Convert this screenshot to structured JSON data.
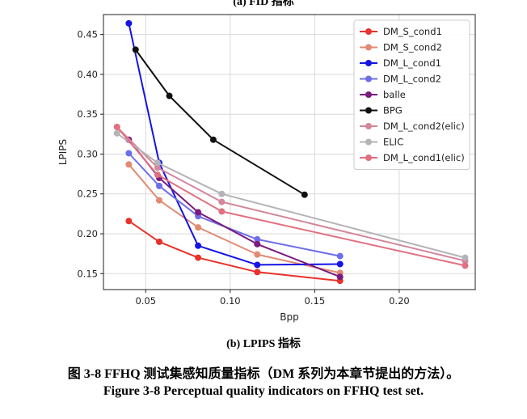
{
  "captions": {
    "top": "(a) FID 指标",
    "sub": "(b) LPIPS 指标",
    "figure_cn": "图 3-8 FFHQ 测试集感知质量指标（DM 系列为本章节提出的方法）。",
    "figure_en": "Figure 3-8 Perceptual quality indicators on FFHQ test set."
  },
  "chart_data": {
    "type": "line",
    "title": "",
    "xlabel": "Bpp",
    "ylabel": "LPIPS",
    "xlim": [
      0.025,
      0.245
    ],
    "ylim": [
      0.13,
      0.475
    ],
    "xticks": [
      0.05,
      0.1,
      0.15,
      0.2
    ],
    "xtick_labels": [
      "0.05",
      "0.10",
      "0.15",
      "0.20"
    ],
    "yticks": [
      0.15,
      0.2,
      0.25,
      0.3,
      0.35,
      0.4,
      0.45
    ],
    "ytick_labels": [
      "0.15",
      "0.20",
      "0.25",
      "0.30",
      "0.35",
      "0.40",
      "0.45"
    ],
    "grid": true,
    "legend_position": "top-right",
    "series": [
      {
        "name": "DM_S_cond1",
        "color": "#e8322a",
        "x": [
          0.04,
          0.058,
          0.081,
          0.116,
          0.165
        ],
        "y": [
          0.216,
          0.19,
          0.17,
          0.152,
          0.141
        ]
      },
      {
        "name": "DM_S_cond2",
        "color": "#e28a74",
        "x": [
          0.04,
          0.058,
          0.081,
          0.116,
          0.165
        ],
        "y": [
          0.287,
          0.242,
          0.208,
          0.174,
          0.151
        ]
      },
      {
        "name": "DM_L_cond1",
        "color": "#1414e6",
        "x": [
          0.04,
          0.058,
          0.081,
          0.116,
          0.165
        ],
        "y": [
          0.464,
          0.289,
          0.185,
          0.161,
          0.162
        ]
      },
      {
        "name": "DM_L_cond2",
        "color": "#6e6ee8",
        "x": [
          0.04,
          0.058,
          0.081,
          0.116,
          0.165
        ],
        "y": [
          0.301,
          0.26,
          0.222,
          0.193,
          0.172
        ]
      },
      {
        "name": "balle",
        "color": "#7b1a80",
        "x": [
          0.04,
          0.058,
          0.081,
          0.116,
          0.165
        ],
        "y": [
          0.318,
          0.27,
          0.227,
          0.187,
          0.146
        ]
      },
      {
        "name": "BPG",
        "color": "#111111",
        "x": [
          0.044,
          0.064,
          0.09,
          0.144
        ],
        "y": [
          0.431,
          0.373,
          0.318,
          0.249
        ]
      },
      {
        "name": "DM_L_cond2(elic)",
        "color": "#d4869a",
        "x": [
          0.033,
          0.057,
          0.095,
          0.239
        ],
        "y": [
          0.334,
          0.283,
          0.24,
          0.166
        ]
      },
      {
        "name": "ELIC",
        "color": "#b4b4b8",
        "x": [
          0.033,
          0.057,
          0.095,
          0.239
        ],
        "y": [
          0.326,
          0.289,
          0.25,
          0.17
        ]
      },
      {
        "name": "DM_L_cond1(elic)",
        "color": "#e07080",
        "x": [
          0.033,
          0.057,
          0.095,
          0.239
        ],
        "y": [
          0.334,
          0.274,
          0.228,
          0.16
        ]
      }
    ]
  }
}
